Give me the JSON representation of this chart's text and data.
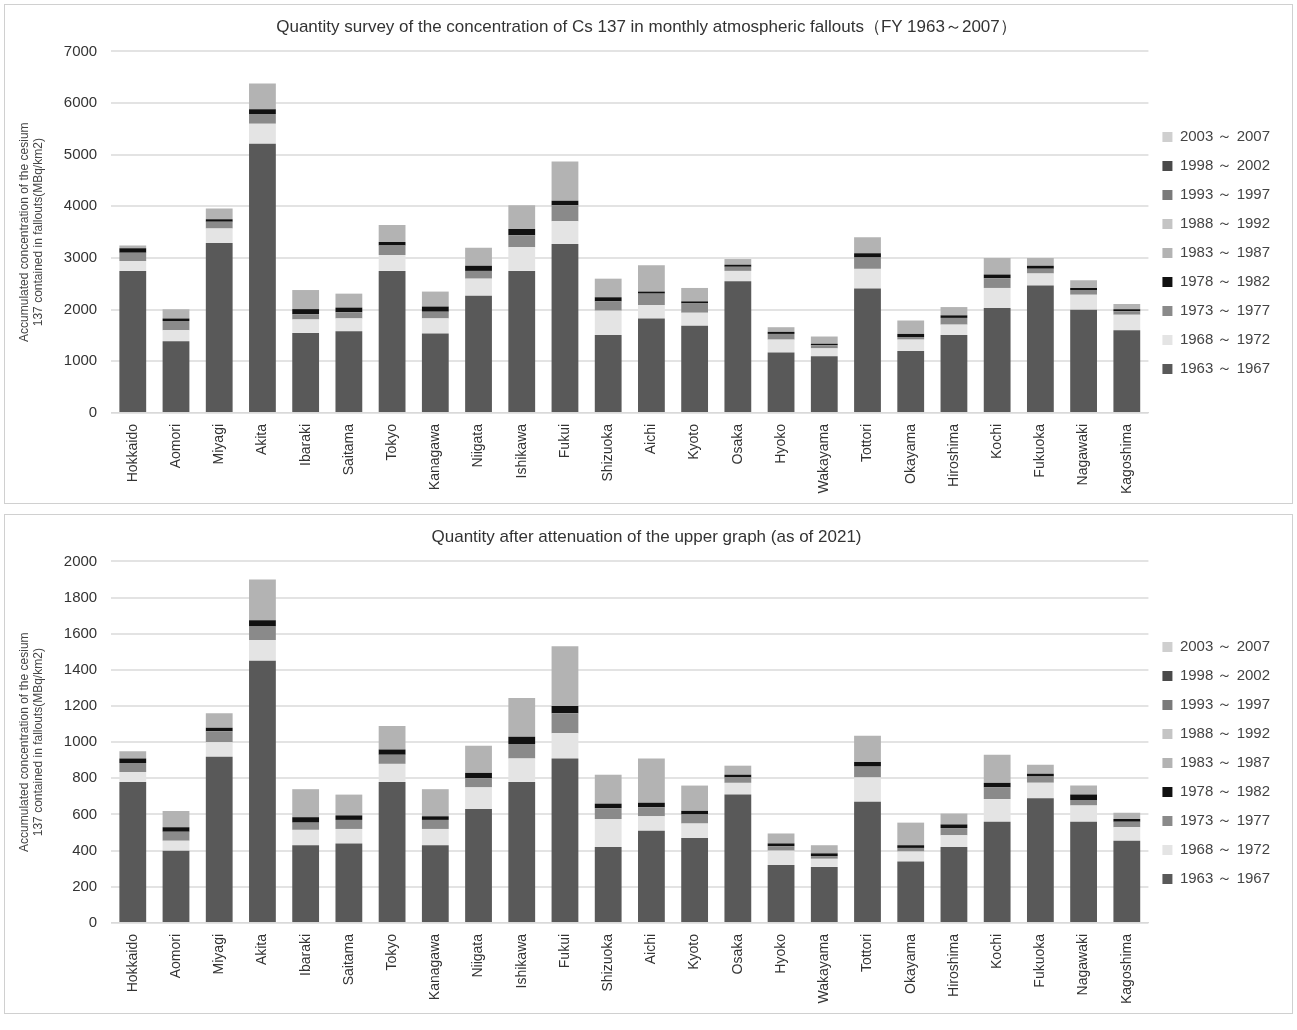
{
  "chart_data": [
    {
      "type": "bar",
      "stacked": true,
      "title": "Quantity survey of the concentration of Cs 137 in monthly atmospheric fallouts（FY 1963～2007）",
      "ylabel": "Accumulated concentration of the cesium 137 contained in fallouts(MBq/km2)",
      "categories": [
        "Hokkaido",
        "Aomori",
        "Miyagi",
        "Akita",
        "Ibaraki",
        "Saitama",
        "Tokyo",
        "Kanagawa",
        "Niigata",
        "Ishikawa",
        "Fukui",
        "Shizuoka",
        "Aichi",
        "Kyoto",
        "Osaka",
        "Hyoko",
        "Wakayama",
        "Tottori",
        "Okayama",
        "Hiroshima",
        "Kochi",
        "Fukuoka",
        "Nagawaki",
        "Kagoshima"
      ],
      "ylim": [
        0,
        7000
      ],
      "yticks": [
        0,
        1000,
        2000,
        3000,
        4000,
        5000,
        6000,
        7000
      ],
      "grid": "y",
      "legend": "right",
      "series": [
        {
          "name": "1963 ～ 1967",
          "color": "#595959",
          "values": [
            2750,
            1390,
            3290,
            5210,
            1550,
            1580,
            2750,
            1540,
            2270,
            2750,
            3270,
            1510,
            1830,
            1690,
            2550,
            1170,
            1100,
            2410,
            1200,
            1510,
            2030,
            2470,
            2000,
            1600
          ]
        },
        {
          "name": "1968 ～ 1972",
          "color": "#e4e4e4",
          "values": [
            190,
            210,
            280,
            390,
            260,
            250,
            310,
            290,
            330,
            460,
            440,
            470,
            260,
            250,
            200,
            250,
            150,
            380,
            220,
            200,
            390,
            230,
            290,
            300
          ]
        },
        {
          "name": "1973 ～ 1977",
          "color": "#8a8a8a",
          "values": [
            160,
            180,
            130,
            190,
            100,
            120,
            180,
            130,
            150,
            230,
            310,
            180,
            220,
            180,
            80,
            110,
            60,
            220,
            50,
            130,
            190,
            90,
            90,
            70
          ]
        },
        {
          "name": "1978 ～ 1982",
          "color": "#111111",
          "values": [
            90,
            50,
            50,
            90,
            100,
            90,
            70,
            100,
            100,
            120,
            90,
            80,
            40,
            40,
            40,
            40,
            30,
            80,
            60,
            50,
            70,
            60,
            40,
            40
          ]
        },
        {
          "name": "1983 ～ 1987",
          "color": "#b3b3b3",
          "values": [
            50,
            180,
            210,
            500,
            370,
            270,
            330,
            290,
            350,
            460,
            760,
            360,
            510,
            260,
            110,
            90,
            140,
            310,
            260,
            160,
            320,
            150,
            150,
            100
          ]
        },
        {
          "name": "1988 ～ 1992",
          "color": "#c4c4c4",
          "values": [
            null,
            null,
            null,
            null,
            null,
            null,
            null,
            null,
            null,
            null,
            null,
            null,
            null,
            null,
            null,
            null,
            null,
            null,
            null,
            null,
            null,
            null,
            null,
            null
          ]
        },
        {
          "name": "1993 ～ 1997",
          "color": "#7a7a7a",
          "values": [
            null,
            null,
            null,
            null,
            null,
            null,
            null,
            null,
            null,
            null,
            null,
            null,
            null,
            null,
            null,
            null,
            null,
            null,
            null,
            null,
            null,
            null,
            null,
            null
          ]
        },
        {
          "name": "1998 ～ 2002",
          "color": "#4a4a4a",
          "values": [
            null,
            null,
            null,
            null,
            null,
            null,
            null,
            null,
            null,
            null,
            null,
            null,
            null,
            null,
            null,
            null,
            null,
            null,
            null,
            null,
            null,
            null,
            null,
            null
          ]
        },
        {
          "name": "2003 ～ 2007",
          "color": "#cfcfcf",
          "values": [
            null,
            null,
            null,
            null,
            null,
            null,
            null,
            null,
            null,
            null,
            null,
            null,
            null,
            null,
            null,
            null,
            null,
            null,
            null,
            null,
            null,
            null,
            null,
            null
          ]
        }
      ]
    },
    {
      "type": "bar",
      "stacked": true,
      "title": "Quantity after attenuation of the upper graph (as of 2021)",
      "ylabel": "Accumulated concentration of the cesium 137 contained in fallouts(MBq/km2)",
      "categories": [
        "Hokkaido",
        "Aomori",
        "Miyagi",
        "Akita",
        "Ibaraki",
        "Saitama",
        "Tokyo",
        "Kanagawa",
        "Niigata",
        "Ishikawa",
        "Fukui",
        "Shizuoka",
        "Aichi",
        "Kyoto",
        "Osaka",
        "Hyoko",
        "Wakayama",
        "Tottori",
        "Okayama",
        "Hiroshima",
        "Kochi",
        "Fukuoka",
        "Nagawaki",
        "Kagoshima"
      ],
      "ylim": [
        0,
        2000
      ],
      "yticks": [
        0,
        200,
        400,
        600,
        800,
        1000,
        1200,
        1400,
        1600,
        1800,
        2000
      ],
      "grid": "y",
      "legend": "right",
      "series": [
        {
          "name": "1963 ～ 1967",
          "color": "#595959",
          "values": [
            780,
            400,
            920,
            1450,
            430,
            440,
            780,
            430,
            630,
            780,
            910,
            420,
            510,
            470,
            710,
            320,
            310,
            670,
            340,
            420,
            560,
            690,
            560,
            455
          ]
        },
        {
          "name": "1968 ～ 1972",
          "color": "#e4e4e4",
          "values": [
            55,
            55,
            80,
            115,
            85,
            80,
            100,
            90,
            120,
            130,
            140,
            155,
            80,
            80,
            65,
            80,
            45,
            135,
            55,
            65,
            125,
            85,
            90,
            75
          ]
        },
        {
          "name": "1973 ～ 1977",
          "color": "#8a8a8a",
          "values": [
            50,
            50,
            60,
            75,
            40,
            50,
            50,
            50,
            50,
            80,
            110,
            60,
            50,
            50,
            30,
            25,
            15,
            60,
            20,
            40,
            65,
            35,
            30,
            30
          ]
        },
        {
          "name": "1978 ～ 1982",
          "color": "#111111",
          "values": [
            25,
            25,
            20,
            35,
            30,
            25,
            30,
            20,
            30,
            40,
            40,
            25,
            25,
            20,
            15,
            15,
            15,
            25,
            15,
            20,
            25,
            15,
            30,
            15
          ]
        },
        {
          "name": "1983 ～ 1987",
          "color": "#b3b3b3",
          "values": [
            40,
            90,
            80,
            225,
            155,
            115,
            130,
            150,
            150,
            215,
            330,
            160,
            245,
            140,
            50,
            55,
            45,
            145,
            125,
            60,
            155,
            50,
            50,
            35
          ]
        },
        {
          "name": "1988 ～ 1992",
          "color": "#c4c4c4",
          "values": [
            null,
            null,
            null,
            null,
            null,
            null,
            null,
            null,
            null,
            null,
            null,
            null,
            null,
            null,
            null,
            null,
            null,
            null,
            null,
            null,
            null,
            null,
            null,
            null
          ]
        },
        {
          "name": "1993 ～ 1997",
          "color": "#7a7a7a",
          "values": [
            null,
            null,
            null,
            null,
            null,
            null,
            null,
            null,
            null,
            null,
            null,
            null,
            null,
            null,
            null,
            null,
            null,
            null,
            null,
            null,
            null,
            null,
            null,
            null
          ]
        },
        {
          "name": "1998 ～ 2002",
          "color": "#4a4a4a",
          "values": [
            null,
            null,
            null,
            null,
            null,
            null,
            null,
            null,
            null,
            null,
            null,
            null,
            null,
            null,
            null,
            null,
            null,
            null,
            null,
            null,
            null,
            null,
            null,
            null
          ]
        },
        {
          "name": "2003 ～ 2007",
          "color": "#cfcfcf",
          "values": [
            null,
            null,
            null,
            null,
            null,
            null,
            null,
            null,
            null,
            null,
            null,
            null,
            null,
            null,
            null,
            null,
            null,
            null,
            null,
            null,
            null,
            null,
            null,
            null
          ]
        }
      ]
    }
  ]
}
